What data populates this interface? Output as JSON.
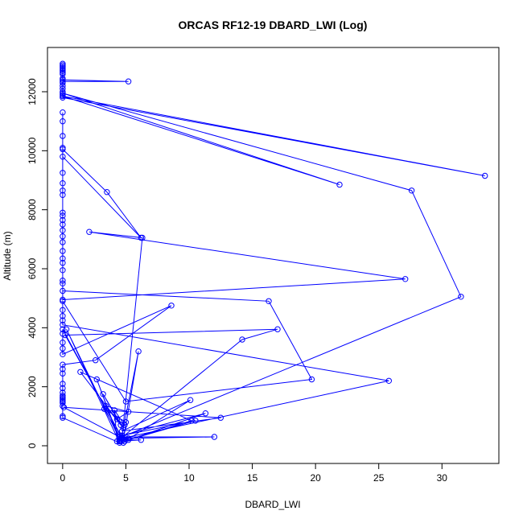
{
  "chart_data": {
    "type": "line",
    "title": "ORCAS RF12-19 DBARD_LWI (Log)",
    "xlabel": "DBARD_LWI",
    "ylabel": "Altitude (m)",
    "xlim": [
      -1.2,
      34.5
    ],
    "ylim": [
      -600,
      13500
    ],
    "x_ticks": [
      0,
      5,
      10,
      15,
      20,
      25,
      30
    ],
    "x_tick_labels": [
      "0",
      "5",
      "10",
      "15",
      "20",
      "25",
      "30"
    ],
    "y_ticks": [
      0,
      2000,
      4000,
      6000,
      8000,
      10000,
      12000
    ],
    "y_tick_labels": [
      "0",
      "2000",
      "4000",
      "6000",
      "8000",
      "10000",
      "12000"
    ],
    "grid": false,
    "series_color": "#0000ff",
    "marker": "open-circle",
    "points": [
      [
        0.0,
        12950
      ],
      [
        0.0,
        12900
      ],
      [
        0.0,
        12850
      ],
      [
        0.0,
        12800
      ],
      [
        0.0,
        12750
      ],
      [
        0.0,
        12700
      ],
      [
        0.0,
        12650
      ],
      [
        0.0,
        12600
      ],
      [
        0.0,
        12450
      ],
      [
        0.0,
        12400
      ],
      [
        5.2,
        12350
      ],
      [
        0.0,
        12350
      ],
      [
        0.0,
        12300
      ],
      [
        0.0,
        12200
      ],
      [
        0.0,
        12100
      ],
      [
        0.0,
        12000
      ],
      [
        0.0,
        11900
      ],
      [
        0.0,
        11800
      ],
      [
        33.4,
        9150
      ],
      [
        0.0,
        11850
      ],
      [
        21.9,
        8850
      ],
      [
        0.0,
        11950
      ],
      [
        27.6,
        8650
      ],
      [
        31.5,
        5050
      ],
      [
        4.7,
        300
      ],
      [
        6.3,
        7050
      ],
      [
        2.1,
        7250
      ],
      [
        27.1,
        5650
      ],
      [
        0.0,
        4950
      ],
      [
        0.0,
        11300
      ],
      [
        0.0,
        11000
      ],
      [
        0.0,
        10500
      ],
      [
        0.0,
        10100
      ],
      [
        0.0,
        10050
      ],
      [
        3.5,
        8600
      ],
      [
        6.2,
        7050
      ],
      [
        0.0,
        9800
      ],
      [
        0.0,
        9250
      ],
      [
        0.0,
        8900
      ],
      [
        0.0,
        8650
      ],
      [
        0.0,
        8500
      ],
      [
        0.0,
        7900
      ],
      [
        0.0,
        7800
      ],
      [
        0.0,
        7650
      ],
      [
        0.0,
        7500
      ],
      [
        0.0,
        7300
      ],
      [
        0.0,
        7100
      ],
      [
        0.0,
        6900
      ],
      [
        0.0,
        6600
      ],
      [
        0.0,
        6350
      ],
      [
        0.0,
        6200
      ],
      [
        0.0,
        5950
      ],
      [
        0.0,
        5600
      ],
      [
        0.0,
        5500
      ],
      [
        0.0,
        5250
      ],
      [
        16.3,
        4900
      ],
      [
        19.7,
        2250
      ],
      [
        5.0,
        1500
      ],
      [
        0.0,
        4900
      ],
      [
        0.0,
        4600
      ],
      [
        0.0,
        4400
      ],
      [
        0.0,
        4250
      ],
      [
        0.0,
        4100
      ],
      [
        25.8,
        2200
      ],
      [
        4.7,
        250
      ],
      [
        0.0,
        3950
      ],
      [
        0.0,
        3800
      ],
      [
        0.0,
        3500
      ],
      [
        0.0,
        3300
      ],
      [
        0.0,
        3100
      ],
      [
        8.6,
        4750
      ],
      [
        2.6,
        2900
      ],
      [
        0.0,
        2750
      ],
      [
        0.0,
        2600
      ],
      [
        0.0,
        2450
      ],
      [
        0.0,
        2100
      ],
      [
        0.0,
        1950
      ],
      [
        0.0,
        1800
      ],
      [
        0.0,
        1700
      ],
      [
        0.0,
        1650
      ],
      [
        0.0,
        1600
      ],
      [
        0.0,
        1550
      ],
      [
        0.0,
        1500
      ],
      [
        0.0,
        1450
      ],
      [
        0.0,
        1350
      ],
      [
        0.0,
        1000
      ],
      [
        0.0,
        950
      ],
      [
        4.5,
        100
      ],
      [
        0.3,
        3950
      ],
      [
        4.6,
        150
      ],
      [
        6.0,
        3200
      ],
      [
        4.8,
        200
      ],
      [
        0.2,
        3750
      ],
      [
        17.0,
        3950
      ],
      [
        14.2,
        3600
      ],
      [
        4.6,
        250
      ],
      [
        12.0,
        300
      ],
      [
        4.5,
        300
      ],
      [
        0.1,
        1300
      ],
      [
        12.5,
        950
      ],
      [
        4.7,
        500
      ],
      [
        10.1,
        1550
      ],
      [
        4.9,
        150
      ],
      [
        11.3,
        1100
      ],
      [
        4.7,
        350
      ],
      [
        10.5,
        850
      ],
      [
        5.2,
        200
      ],
      [
        10.2,
        850
      ],
      [
        1.4,
        2500
      ],
      [
        4.8,
        600
      ],
      [
        3.2,
        1750
      ],
      [
        4.6,
        700
      ],
      [
        3.4,
        1350
      ],
      [
        5.2,
        1150
      ],
      [
        4.3,
        900
      ],
      [
        4.9,
        700
      ],
      [
        4.1,
        1200
      ],
      [
        4.3,
        150
      ],
      [
        6.2,
        200
      ],
      [
        4.5,
        200
      ],
      [
        2.7,
        2250
      ],
      [
        4.5,
        150
      ],
      [
        5.2,
        250
      ],
      [
        4.8,
        100
      ],
      [
        3.3,
        1250
      ],
      [
        5.0,
        800
      ]
    ]
  }
}
